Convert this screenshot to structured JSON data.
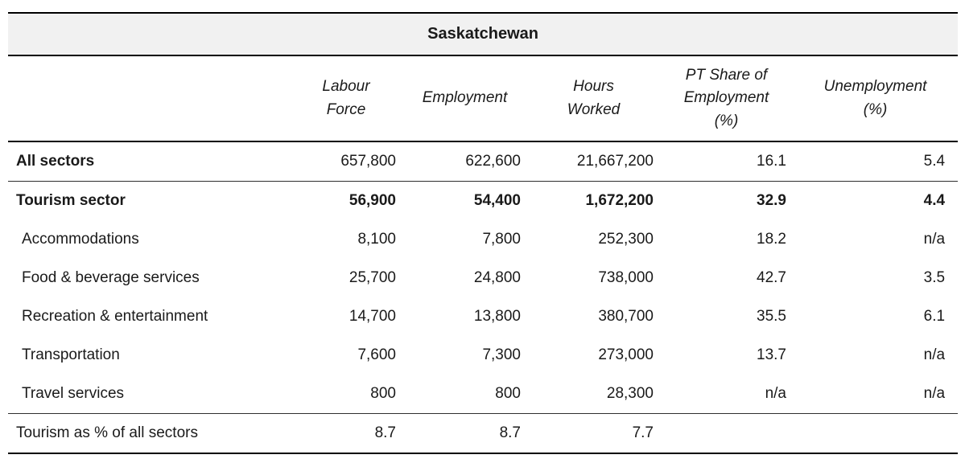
{
  "chart_data": {
    "type": "table",
    "title": "Saskatchewan",
    "headers": [
      "Labour Force",
      "Employment",
      "Hours Worked",
      "PT Share of Employment (%)",
      "Unemployment (%)"
    ],
    "rows": [
      {
        "label": "All sectors",
        "values": [
          "657,800",
          "622,600",
          "21,667,200",
          "16.1",
          "5.4"
        ]
      },
      {
        "label": "Tourism sector",
        "values": [
          "56,900",
          "54,400",
          "1,672,200",
          "32.9",
          "4.4"
        ]
      },
      {
        "label": "Accommodations",
        "values": [
          "8,100",
          "7,800",
          "252,300",
          "18.2",
          "n/a"
        ]
      },
      {
        "label": "Food & beverage services",
        "values": [
          "25,700",
          "24,800",
          "738,000",
          "42.7",
          "3.5"
        ]
      },
      {
        "label": "Recreation & entertainment",
        "values": [
          "14,700",
          "13,800",
          "380,700",
          "35.5",
          "6.1"
        ]
      },
      {
        "label": "Transportation",
        "values": [
          "7,600",
          "7,300",
          "273,000",
          "13.7",
          "n/a"
        ]
      },
      {
        "label": "Travel services",
        "values": [
          "800",
          "800",
          "28,300",
          "n/a",
          "n/a"
        ]
      },
      {
        "label": "Tourism as % of all sectors",
        "values": [
          "8.7",
          "8.7",
          "7.7",
          "",
          ""
        ]
      }
    ]
  },
  "colors": {
    "title_band_bg": "#f1f1f1",
    "rule_strong": "#000000",
    "rule_thin": "#2e2e2e",
    "text": "#1a1a1a"
  }
}
